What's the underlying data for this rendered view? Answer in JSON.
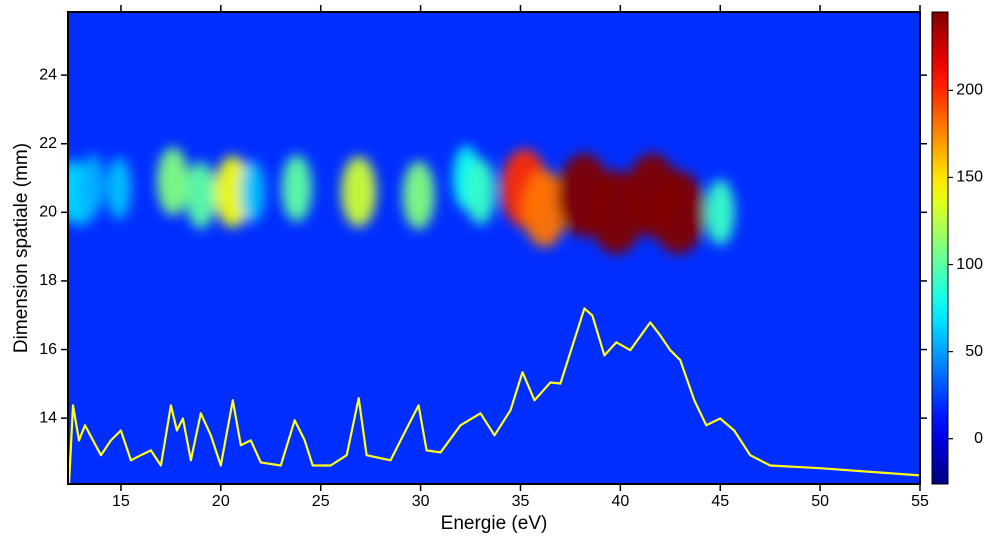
{
  "chart_data": {
    "type": "heatmap-line",
    "xlabel": "Energie (eV)",
    "ylabel": "Dimension spatiale (mm)",
    "xlim": [
      12.35,
      55
    ],
    "ylim": [
      12.08,
      25.84
    ],
    "xticks": [
      15,
      20,
      25,
      30,
      35,
      40,
      45,
      50,
      55
    ],
    "yticks": [
      14,
      16,
      18,
      20,
      22,
      24
    ],
    "clim": [
      -26,
      245
    ],
    "cticks": [
      0,
      50,
      100,
      150,
      200
    ],
    "colormap": "jet",
    "background": 20,
    "spots": {
      "x": [
        12.6,
        13.1,
        13.6,
        14.9,
        17.6,
        19.0,
        20.6,
        21.6,
        23.8,
        26.9,
        29.9,
        32.3,
        33.0,
        35.2,
        36.2,
        38.2,
        39.8,
        41.6,
        42.9,
        45.0
      ],
      "y": [
        20.6,
        20.5,
        20.8,
        20.7,
        20.9,
        20.5,
        20.6,
        20.6,
        20.7,
        20.6,
        20.5,
        21.0,
        20.6,
        20.7,
        20.1,
        20.5,
        20.0,
        20.5,
        20.0,
        20.0
      ],
      "values": [
        70,
        60,
        55,
        60,
        110,
        100,
        140,
        60,
        100,
        130,
        110,
        80,
        90,
        200,
        180,
        245,
        245,
        245,
        245,
        90
      ]
    },
    "series": [
      {
        "color": "#ffff1a",
        "x": [
          12.4,
          12.6,
          12.9,
          13.2,
          13.6,
          14,
          14.5,
          15,
          15.5,
          16,
          16.5,
          17,
          17.5,
          17.8,
          18.1,
          18.5,
          19,
          19.5,
          20,
          20.6,
          21,
          21.5,
          22,
          23,
          23.7,
          24.2,
          24.6,
          25.5,
          26.3,
          26.9,
          27.3,
          28.5,
          29,
          29.9,
          30.3,
          31,
          32,
          33,
          33.7,
          34.5,
          35.1,
          35.7,
          36.5,
          37,
          38.2,
          38.6,
          39.2,
          39.8,
          40.5,
          41.5,
          42,
          42.5,
          43,
          43.7,
          44.3,
          45,
          45.7,
          46.5,
          47.5,
          50,
          55
        ],
        "values": [
          12.07,
          14.37,
          13.35,
          13.79,
          13.35,
          12.92,
          13.35,
          13.64,
          12.77,
          12.92,
          13.06,
          12.62,
          14.37,
          13.64,
          13.99,
          12.77,
          14.14,
          13.5,
          12.62,
          14.52,
          13.21,
          13.35,
          12.71,
          12.62,
          13.94,
          13.35,
          12.62,
          12.62,
          12.92,
          14.58,
          12.92,
          12.77,
          13.35,
          14.37,
          13.06,
          13.0,
          13.79,
          14.14,
          13.5,
          14.23,
          15.34,
          14.52,
          15.04,
          15.01,
          17.2,
          16.99,
          15.83,
          16.21,
          15.98,
          16.79,
          16.41,
          15.98,
          15.69,
          14.52,
          13.79,
          13.99,
          13.64,
          12.92,
          12.62,
          12.54,
          12.33
        ]
      }
    ]
  }
}
